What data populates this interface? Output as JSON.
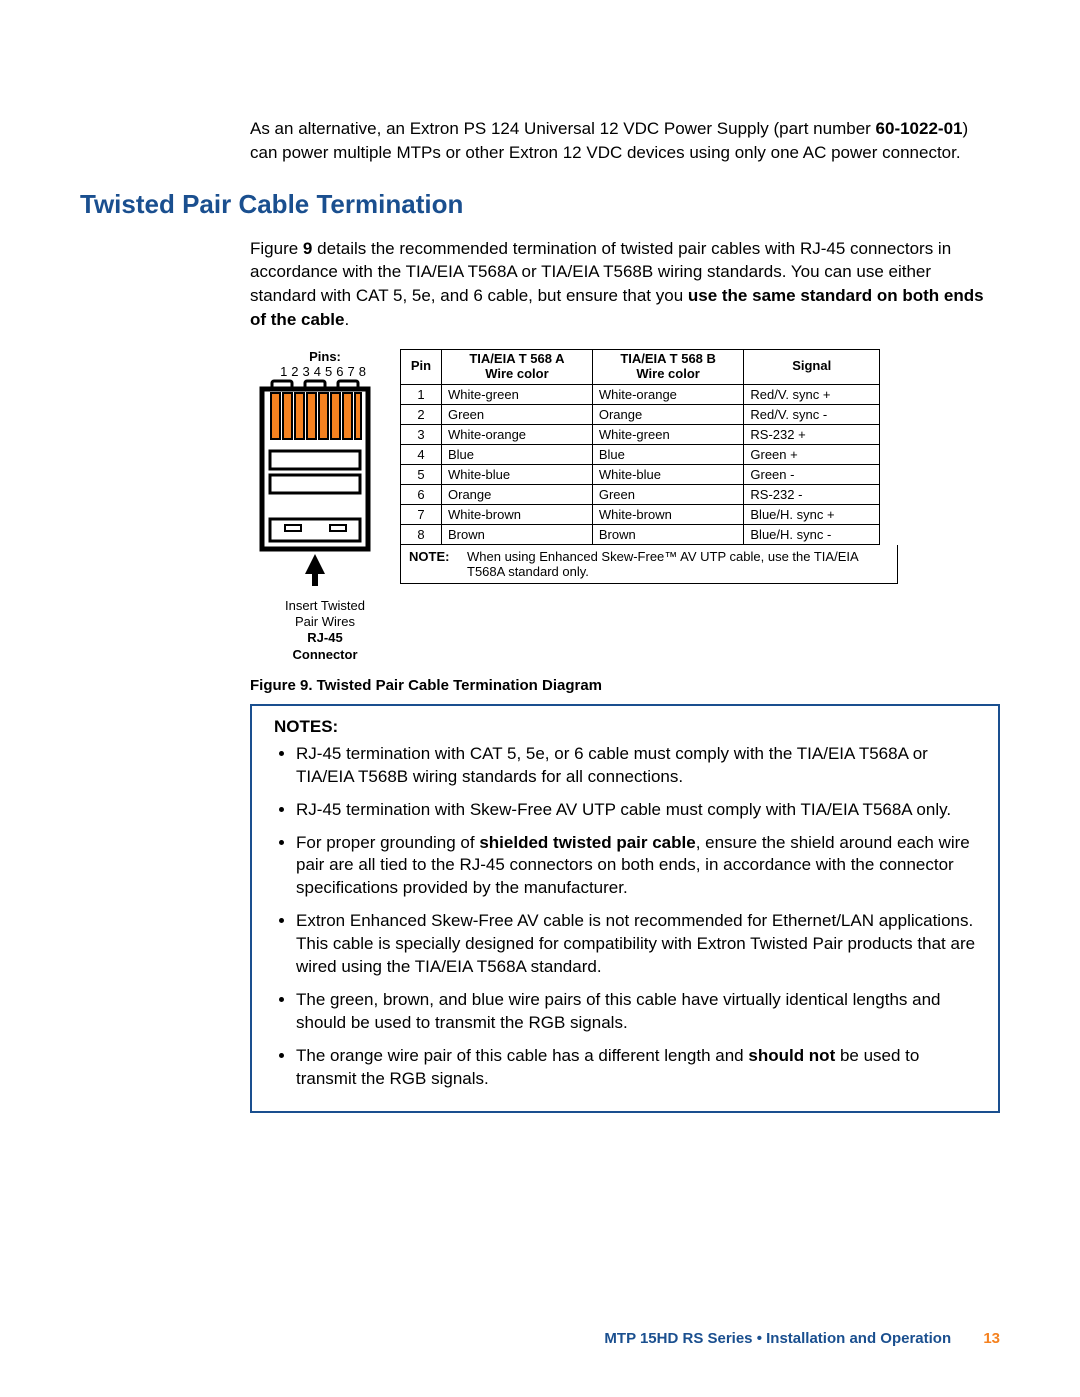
{
  "intro": {
    "pre": "As an alternative, an Extron PS 124 Universal 12 VDC Power Supply (part number ",
    "part_num": "60-1022-01",
    "post": ") can power multiple MTPs or other Extron 12 VDC devices using only one AC power connector."
  },
  "heading": "Twisted Pair Cable Termination",
  "para1": {
    "pre": "Figure ",
    "fignum": "9",
    "mid": " details the recommended termination of twisted pair cables with RJ-45 connectors in accordance with the TIA/EIA T568A or TIA/EIA T568B wiring standards. You can use either standard with CAT 5, 5e, and 6 cable, but ensure that you ",
    "bold_tail": "use the same standard on both ends of the cable",
    "end": "."
  },
  "connector": {
    "pins_label": "Pins:",
    "pins_numbers": "12345678",
    "caption_line1": "Insert Twisted",
    "caption_line2": "Pair Wires",
    "caption_line3": "RJ-45",
    "caption_line4": "Connector",
    "svg": {
      "outer_stroke": "#000",
      "wire_color": "#f58220",
      "body_fill": "#ffffff"
    }
  },
  "table": {
    "headers": {
      "pin": "Pin",
      "col_a_top": "TIA/EIA T 568 A",
      "col_a_sub": "Wire color",
      "col_b_top": "TIA/EIA T 568 B",
      "col_b_sub": "Wire color",
      "signal": "Signal"
    },
    "rows": [
      {
        "pin": "1",
        "a": "White-green",
        "b": "White-orange",
        "sig": "Red/V. sync +"
      },
      {
        "pin": "2",
        "a": "Green",
        "b": "Orange",
        "sig": "Red/V. sync -"
      },
      {
        "pin": "3",
        "a": "White-orange",
        "b": "White-green",
        "sig": "RS-232 +"
      },
      {
        "pin": "4",
        "a": "Blue",
        "b": "Blue",
        "sig": "Green +"
      },
      {
        "pin": "5",
        "a": "White-blue",
        "b": "White-blue",
        "sig": "Green -"
      },
      {
        "pin": "6",
        "a": "Orange",
        "b": "Green",
        "sig": "RS-232 -"
      },
      {
        "pin": "7",
        "a": "White-brown",
        "b": "White-brown",
        "sig": "Blue/H. sync +"
      },
      {
        "pin": "8",
        "a": "Brown",
        "b": "Brown",
        "sig": "Blue/H. sync -"
      }
    ],
    "note_label": "NOTE:",
    "note_text": "When using Enhanced Skew-Free™ AV UTP cable, use the TIA/EIA T568A standard only."
  },
  "fig_caption": "Figure 9.   Twisted Pair Cable Termination Diagram",
  "notes": {
    "heading": "NOTES:",
    "items": [
      {
        "text": "RJ-45 termination with CAT 5, 5e, or 6 cable must comply with the TIA/EIA T568A or TIA/EIA T568B wiring standards for all connections."
      },
      {
        "text": "RJ-45 termination with Skew-Free AV UTP cable must comply with TIA/EIA T568A only."
      },
      {
        "pre": "For proper grounding of ",
        "bold": "shielded twisted pair cable",
        "post": ", ensure the shield around each wire pair are all tied to the RJ-45 connectors on both ends, in accordance with the connector specifications provided by the manufacturer."
      },
      {
        "text": "Extron Enhanced Skew-Free AV cable is not recommended for Ethernet/LAN applications. This cable is specially designed for compatibility with Extron Twisted Pair products that are wired using the TIA/EIA T568A standard."
      },
      {
        "text": "The green, brown, and blue wire pairs of this cable have virtually identical lengths and should be used to transmit the RGB signals."
      },
      {
        "pre": "The orange wire pair of this cable has a different length and ",
        "bold": "should not",
        "post": " be used to transmit the RGB signals."
      }
    ]
  },
  "footer": {
    "text": "MTP 15HD RS Series • Installation and Operation",
    "page": "13"
  }
}
